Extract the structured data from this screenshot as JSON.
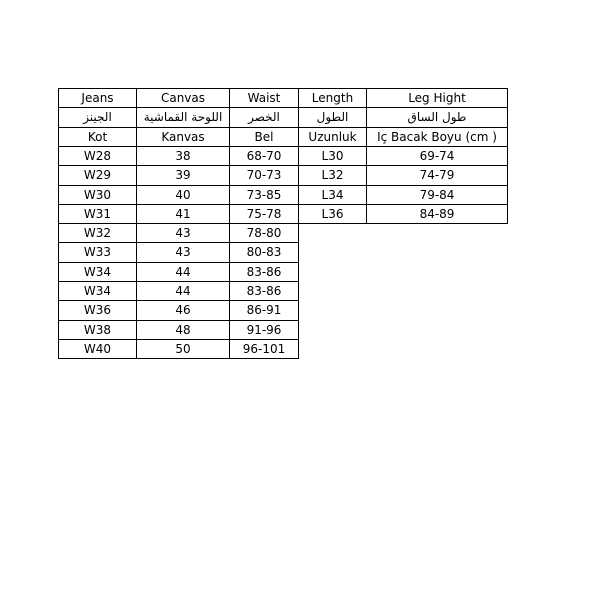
{
  "size_table": {
    "header_rows": [
      [
        "Jeans",
        "Canvas",
        "Waist",
        "Length",
        "Leg Hight"
      ],
      [
        "الجينز",
        "اللوحة القماشية",
        "الخصر",
        "الطول",
        "طول الساق"
      ],
      [
        "Kot",
        "Kanvas",
        "Bel",
        "Uzunluk",
        "Iç Bacak Boyu (cm )"
      ]
    ],
    "rows": [
      [
        "W28",
        "38",
        "68-70",
        "L30",
        "69-74"
      ],
      [
        "W29",
        "39",
        "70-73",
        "L32",
        "74-79"
      ],
      [
        "W30",
        "40",
        "73-85",
        "L34",
        "79-84"
      ],
      [
        "W31",
        "41",
        "75-78",
        "L36",
        "84-89"
      ],
      [
        "W32",
        "43",
        "78-80"
      ],
      [
        "W33",
        "43",
        "80-83"
      ],
      [
        "W34",
        "44",
        "83-86"
      ],
      [
        "W34",
        "44",
        "83-86"
      ],
      [
        "W36",
        "46",
        "86-91"
      ],
      [
        "W38",
        "48",
        "91-96"
      ],
      [
        "W40",
        "50",
        "96-101"
      ]
    ]
  }
}
